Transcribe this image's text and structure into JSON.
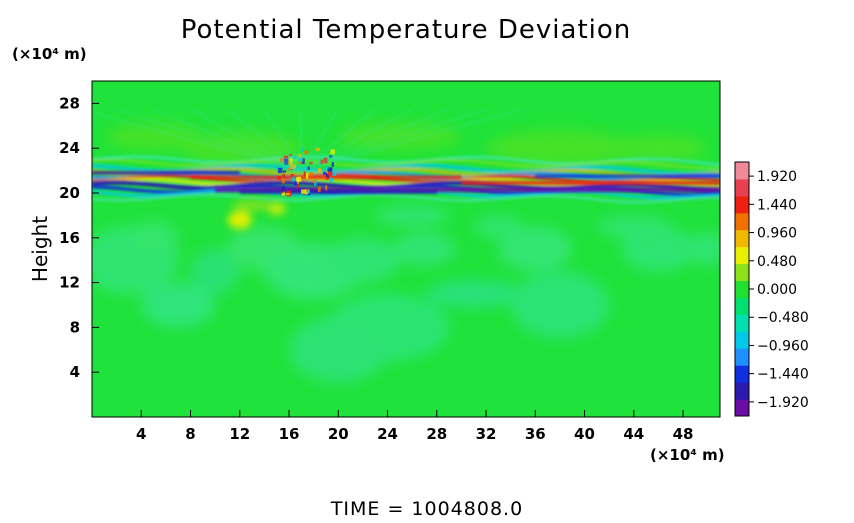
{
  "chart_data": {
    "type": "heatmap",
    "title": "Potential Temperature Deviation",
    "ylabel": "Height",
    "y_unit": "(×10⁴ m)",
    "x_unit": "(×10⁴ m)",
    "xlim": [
      0,
      51
    ],
    "ylim": [
      0,
      30
    ],
    "x_ticks": [
      4,
      8,
      12,
      16,
      20,
      24,
      28,
      32,
      36,
      40,
      44,
      48
    ],
    "y_ticks": [
      4,
      8,
      12,
      16,
      20,
      24,
      28
    ],
    "colorbar": {
      "min": -2.16,
      "max": 2.16,
      "ticks": [
        "1.920",
        "1.440",
        "0.960",
        "0.480",
        "0.000",
        "−0.480",
        "−0.960",
        "−1.440",
        "−1.920"
      ],
      "colors": [
        "#6a0da8",
        "#2a1ab0",
        "#1030e0",
        "#1e90ff",
        "#00c8e8",
        "#00e0b0",
        "#00e070",
        "#20e030",
        "#8ce21a",
        "#e8f000",
        "#f0b800",
        "#f07000",
        "#ee2010",
        "#e84050",
        "#f08a9a"
      ]
    },
    "background_color": "#1fe23a",
    "features": [
      {
        "name": "dark band",
        "x_range": [
          0,
          51
        ],
        "y": 20.5,
        "value": -1.92
      },
      {
        "name": "positive band",
        "x_range": [
          0,
          51
        ],
        "y": 21.2,
        "value": 1.92
      },
      {
        "name": "disturbance",
        "x": 17,
        "y_range": [
          20,
          24
        ],
        "value": 1.44
      },
      {
        "name": "warm blob",
        "x": 12,
        "y": 17.5,
        "value": 0.96
      }
    ],
    "footer": "TIME = 1004808.0"
  }
}
